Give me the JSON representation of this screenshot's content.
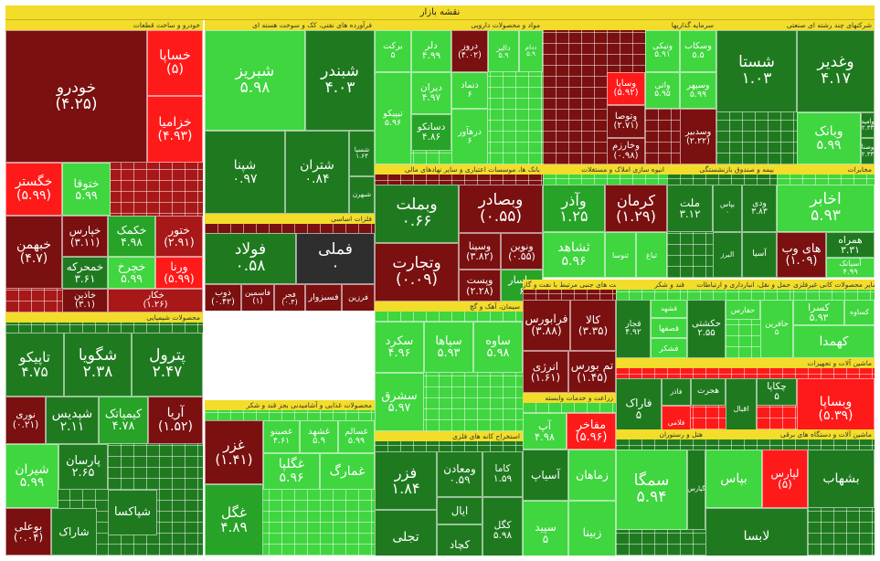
{
  "title": "نقشه بازار",
  "colors": {
    "dg": "#1f7a1f",
    "mg": "#27a327",
    "lg": "#3fd63f",
    "bg": "#55e655",
    "dr": "#7a1010",
    "rd": "#a81818",
    "br": "#ff1a1a",
    "gy": "#2e2e2e"
  },
  "sectors": [
    {
      "label": "خودرو و ساخت قطعات",
      "tiles": [
        {
          "name": "خودرو",
          "pct": "(۴.۲۵)",
          "c": "dr",
          "big": true
        },
        {
          "name": "خساپا",
          "pct": "(۵)",
          "c": "br",
          "big": true
        },
        {
          "name": "خزامیا",
          "pct": "(۴.۹۳)",
          "c": "br"
        },
        {
          "name": "خگستر",
          "pct": "(۵.۹۹)",
          "c": "br"
        },
        {
          "name": "ختوقا",
          "pct": "۵.۹۹",
          "c": "lg"
        },
        {
          "name": "خبهمن",
          "pct": "(۴.۷)",
          "c": "dr"
        },
        {
          "name": "خپارس",
          "pct": "(۳.۱۱)",
          "c": "dr"
        },
        {
          "name": "خمحرکه",
          "pct": "۳.۶۱",
          "c": "dg"
        },
        {
          "name": "خاذین",
          "pct": "(۳.۱)",
          "c": "dr"
        },
        {
          "name": "خکمک",
          "pct": "۴.۹۸",
          "c": "mg"
        },
        {
          "name": "ختور",
          "pct": "(۲.۹۱)",
          "c": "rd"
        },
        {
          "name": "خچرخ",
          "pct": "۵.۹۹",
          "c": "lg"
        },
        {
          "name": "ورنا",
          "pct": "(۵.۹۹)",
          "c": "br"
        },
        {
          "name": "خکار",
          "pct": "(۱.۲۶)",
          "c": "rd"
        }
      ]
    },
    {
      "label": "فرآورده های نفتی، کک و سوخت هسته ای",
      "tiles": [
        {
          "name": "شبندر",
          "pct": "۴.۰۳",
          "c": "dg",
          "big": true
        },
        {
          "name": "شبریز",
          "pct": "۵.۹۸",
          "c": "lg",
          "big": true
        },
        {
          "name": "شتران",
          "pct": "۰.۸۴",
          "c": "dg"
        },
        {
          "name": "شپنا",
          "pct": "۰.۹۷",
          "c": "dg"
        },
        {
          "name": "شسپا",
          "pct": "۱.۶۳",
          "c": "dg"
        },
        {
          "name": "شبهرن",
          "pct": "",
          "c": "dg"
        }
      ]
    },
    {
      "label": "فلزات اساسی",
      "tiles": [
        {
          "name": "فولاد",
          "pct": "۰.۵۸",
          "c": "dg",
          "big": true
        },
        {
          "name": "فملی",
          "pct": "۰",
          "c": "gy",
          "big": true
        },
        {
          "name": "ذوب",
          "pct": "(۰.۴۲)",
          "c": "dr"
        },
        {
          "name": "فاسمین",
          "pct": "(۱)",
          "c": "dr"
        },
        {
          "name": "فجر",
          "pct": "(۰.۴)",
          "c": "dr"
        },
        {
          "name": "فسبزوار",
          "pct": "",
          "c": "dr"
        },
        {
          "name": "فرزین",
          "pct": "",
          "c": "dr"
        }
      ]
    },
    {
      "label": "محصولات شیمیایی",
      "tiles": [
        {
          "name": "تاپیکو",
          "pct": "۴.۷۵",
          "c": "dg",
          "big": true
        },
        {
          "name": "شگویا",
          "pct": "۲.۳۸",
          "c": "dg",
          "big": true
        },
        {
          "name": "پترول",
          "pct": "۲.۴۷",
          "c": "dg",
          "big": true
        },
        {
          "name": "نوری",
          "pct": "(۰.۲۱)",
          "c": "dr"
        },
        {
          "name": "شپدیس",
          "pct": "۲.۱۱",
          "c": "dg"
        },
        {
          "name": "کیمیاتک",
          "pct": "۴.۷۸",
          "c": "mg"
        },
        {
          "name": "آریا",
          "pct": "(۱.۵۲)",
          "c": "dr"
        },
        {
          "name": "شیران",
          "pct": "۵.۹۹",
          "c": "lg"
        },
        {
          "name": "پارسان",
          "pct": "۲.۶۵",
          "c": "dg"
        },
        {
          "name": "بوعلی",
          "pct": "(۰.۰۴)",
          "c": "dr"
        },
        {
          "name": "شاراک",
          "pct": "",
          "c": "dg"
        },
        {
          "name": "شپاکسا",
          "pct": "",
          "c": "dg"
        }
      ]
    },
    {
      "label": "مواد و محصولات دارویی",
      "tiles": [
        {
          "name": "برکت",
          "pct": "۵",
          "c": "lg"
        },
        {
          "name": "دلر",
          "pct": "۴.۹۹",
          "c": "lg"
        },
        {
          "name": "دروز",
          "pct": "(۴.۰۲)",
          "c": "dr"
        },
        {
          "name": "دالبر",
          "pct": "۵.۹",
          "c": "lg"
        },
        {
          "name": "ددام",
          "pct": "۵.۹",
          "c": "lg"
        },
        {
          "name": "دیران",
          "pct": "۴.۹۷",
          "c": "lg"
        },
        {
          "name": "دتماد",
          "pct": "۶",
          "c": "lg"
        },
        {
          "name": "دسانکو",
          "pct": "۴.۸۶",
          "c": "mg"
        },
        {
          "name": "تیپیکو",
          "pct": "۵.۹۶",
          "c": "lg"
        },
        {
          "name": "درهآور",
          "pct": "۶",
          "c": "lg"
        }
      ]
    },
    {
      "label": "سرمایه گذاریها",
      "tiles": [
        {
          "name": "وتیکی",
          "pct": "۵.۹۱",
          "c": "lg"
        },
        {
          "name": "وسکاب",
          "pct": "۵.۵",
          "c": "lg"
        },
        {
          "name": "واتی",
          "pct": "۵.۹۵",
          "c": "lg"
        },
        {
          "name": "وسپهر",
          "pct": "۵.۹۹",
          "c": "lg"
        },
        {
          "name": "وساپا",
          "pct": "(۵.۹۲)",
          "c": "br"
        },
        {
          "name": "وتوصا",
          "pct": "(۲.۷۱)",
          "c": "dr"
        },
        {
          "name": "وخارزم",
          "pct": "(۰.۹۸)",
          "c": "dr"
        },
        {
          "name": "وسدبیر",
          "pct": "(۲.۲۲)",
          "c": "dr"
        }
      ]
    },
    {
      "label": "شرکتهای چند رشته ای صنعتی",
      "tiles": [
        {
          "name": "شستا",
          "pct": "۱.۰۳",
          "c": "dg",
          "big": true
        },
        {
          "name": "وغدیر",
          "pct": "۴.۱۷",
          "c": "dg",
          "big": true
        },
        {
          "name": "وبانک",
          "pct": "۵.۹۹",
          "c": "lg"
        },
        {
          "name": "وامید",
          "pct": "۲.۳۳",
          "c": "dg"
        },
        {
          "name": "وصنا",
          "pct": "۲.۳۳",
          "c": "dg"
        }
      ]
    },
    {
      "label": "بانک ها، موسسات اعتباری و سایر نهادهای مالی",
      "tiles": [
        {
          "name": "وبملت",
          "pct": "۰.۶۶",
          "c": "dg",
          "big": true
        },
        {
          "name": "وبصادر",
          "pct": "(۰.۵۵)",
          "c": "dr",
          "big": true
        },
        {
          "name": "وسینا",
          "pct": "(۳.۸۲)",
          "c": "dr"
        },
        {
          "name": "ونوین",
          "pct": "(۰.۵۵)",
          "c": "dr"
        },
        {
          "name": "وتجارت",
          "pct": "(۰.۰۹)",
          "c": "dr",
          "big": true
        },
        {
          "name": "وپاسار",
          "pct": "۶",
          "c": "mg"
        },
        {
          "name": "وپست",
          "pct": "(۲.۲۸)",
          "c": "dr"
        },
        {
          "name": "وپارس",
          "pct": "",
          "c": "dr"
        }
      ]
    },
    {
      "label": "انبوه سازی املاک و مستغلات",
      "tiles": [
        {
          "name": "وآذر",
          "pct": "۱.۲۵",
          "c": "mg",
          "big": true
        },
        {
          "name": "کرمان",
          "pct": "(۱.۲۹)",
          "c": "dr",
          "big": true
        },
        {
          "name": "ثشاهد",
          "pct": "۵.۹۶",
          "c": "lg"
        },
        {
          "name": "ثنوسا",
          "pct": "",
          "c": "lg"
        },
        {
          "name": "ثباغ",
          "pct": "",
          "c": "lg"
        }
      ]
    },
    {
      "label": "بیمه و صندوق بازنشستگی",
      "tiles": [
        {
          "name": "ملت",
          "pct": "۳.۱۲",
          "c": "dg",
          "big": true
        },
        {
          "name": "بپاس",
          "pct": "۰",
          "c": "dg"
        },
        {
          "name": "ودی",
          "pct": "۳.۸۳",
          "c": "dg"
        },
        {
          "name": "آسیا",
          "pct": "",
          "c": "dg"
        },
        {
          "name": "البرز",
          "pct": "",
          "c": "dg"
        }
      ]
    },
    {
      "label": "مخابرات",
      "tiles": [
        {
          "name": "اخابر",
          "pct": "۵.۹۳",
          "c": "lg",
          "big": true
        },
        {
          "name": "های وب",
          "pct": "(۱.۰۹)",
          "c": "dr"
        },
        {
          "name": "همراه",
          "pct": "۳.۳۱",
          "c": "dg"
        },
        {
          "name": "آسیاتک",
          "pct": "۴.۹۹",
          "c": "lg"
        }
      ]
    },
    {
      "label": "سیمان، آهک و گچ",
      "tiles": [
        {
          "name": "سکرد",
          "pct": "۴.۹۶",
          "c": "lg"
        },
        {
          "name": "سپاها",
          "pct": "۵.۹۳",
          "c": "lg"
        },
        {
          "name": "ساوه",
          "pct": "۵.۹۸",
          "c": "lg"
        },
        {
          "name": "سشرق",
          "pct": "۵.۹۷",
          "c": "lg"
        },
        {
          "name": "سیتا",
          "pct": "۴.۹۷",
          "c": "lg"
        }
      ]
    },
    {
      "label": "فعالیت های جنبی مرتبط با نفت و گاز",
      "tiles": [
        {
          "name": "فرابورس",
          "pct": "(۳.۸۸)",
          "c": "dr",
          "big": true
        },
        {
          "name": "کالا",
          "pct": "(۳.۳۵)",
          "c": "dr",
          "big": true
        },
        {
          "name": "انرژی",
          "pct": "(۱.۶۱)",
          "c": "dr"
        },
        {
          "name": "تم بورس",
          "pct": "(۱.۴۵)",
          "c": "dr"
        }
      ]
    },
    {
      "label": "قند و شکر",
      "tiles": [
        {
          "name": "قجار",
          "pct": "۴.۹۲",
          "c": "dg",
          "big": true
        },
        {
          "name": "قشهد",
          "pct": "",
          "c": "lg"
        },
        {
          "name": "قصفها",
          "pct": "",
          "c": "lg"
        },
        {
          "name": "قشکر",
          "pct": "",
          "c": "lg"
        }
      ]
    },
    {
      "label": "حمل و نقل، انبارداری و ارتباطات",
      "tiles": [
        {
          "name": "حکشتی",
          "pct": "۲.۵۵",
          "c": "dg"
        },
        {
          "name": "حفارس",
          "pct": "",
          "c": "lg"
        },
        {
          "name": "حافرین",
          "pct": "۵",
          "c": "lg"
        }
      ]
    },
    {
      "label": "سایر محصولات کانی غیرفلزی",
      "tiles": [
        {
          "name": "کسرا",
          "pct": "۵.۹۳",
          "c": "lg"
        },
        {
          "name": "کساوه",
          "pct": "",
          "c": "lg"
        },
        {
          "name": "کهمدا",
          "pct": "",
          "c": "lg"
        }
      ]
    },
    {
      "label": "محصولات غذایی و آشامیدنی بجز قند و شکر",
      "tiles": [
        {
          "name": "غزر",
          "pct": "(۱.۴۱)",
          "c": "dr",
          "big": true
        },
        {
          "name": "غصینو",
          "pct": "۴.۶۱",
          "c": "lg"
        },
        {
          "name": "غشهد",
          "pct": "۵.۹",
          "c": "lg"
        },
        {
          "name": "غسالم",
          "pct": "۵.۹۹",
          "c": "lg"
        },
        {
          "name": "غگل",
          "pct": "۴.۸۹",
          "c": "mg",
          "big": true
        },
        {
          "name": "غگلپا",
          "pct": "۵.۹۶",
          "c": "lg"
        },
        {
          "name": "غدام",
          "pct": "۳.۸۴",
          "c": "dg"
        },
        {
          "name": "غمارگ",
          "pct": "",
          "c": "lg"
        }
      ]
    },
    {
      "label": "استخراج کانه های فلزی",
      "tiles": [
        {
          "name": "فزر",
          "pct": "۱.۸۴",
          "c": "dg",
          "big": true
        },
        {
          "name": "ومعادن",
          "pct": "۰.۵۹",
          "c": "dg"
        },
        {
          "name": "کاما",
          "pct": "۱.۵۹",
          "c": "dg"
        },
        {
          "name": "ایال",
          "pct": "",
          "c": "dg"
        },
        {
          "name": "کگل",
          "pct": "۵.۹۸",
          "c": "dg"
        },
        {
          "name": "کچاد",
          "pct": "",
          "c": "dg"
        },
        {
          "name": "تجلی",
          "pct": "",
          "c": "dg"
        }
      ]
    },
    {
      "label": "زراعت و خدمات وابسته",
      "tiles": [
        {
          "name": "آپ",
          "pct": "۴.۹۸",
          "c": "lg"
        },
        {
          "name": "مفاخر",
          "pct": "(۵.۹۶)",
          "c": "br"
        },
        {
          "name": "آسیاپ",
          "pct": "",
          "c": "dg"
        },
        {
          "name": "سپید",
          "pct": "۵",
          "c": "lg"
        },
        {
          "name": "زبینا",
          "pct": "",
          "c": "lg"
        },
        {
          "name": "زماهان",
          "pct": "",
          "c": "lg"
        }
      ]
    },
    {
      "label": "ماشین آلات و تجهیزات",
      "tiles": [
        {
          "name": "فاراک",
          "pct": "۵",
          "c": "dg"
        },
        {
          "name": "فاذر",
          "pct": "",
          "c": "dg"
        },
        {
          "name": "هجرت",
          "pct": "",
          "c": "dg"
        },
        {
          "name": "اقبال",
          "pct": "",
          "c": "dg"
        },
        {
          "name": "چکاپا",
          "pct": "۵",
          "c": "dg"
        },
        {
          "name": "فلامی",
          "pct": "",
          "c": "br"
        },
        {
          "name": "وبساپا",
          "pct": "(۵.۳۹)",
          "c": "br"
        }
      ]
    },
    {
      "label": "هتل و رستوران",
      "tiles": [
        {
          "name": "سمگا",
          "pct": "۵.۹۴",
          "c": "lg",
          "big": true
        },
        {
          "name": "گپارس",
          "pct": "",
          "c": "dg"
        }
      ]
    },
    {
      "label": "ماشین آلات و دستگاه های برقی",
      "tiles": [
        {
          "name": "بپاس",
          "pct": "",
          "c": "lg"
        },
        {
          "name": "لپارس",
          "pct": "(۵)",
          "c": "br"
        },
        {
          "name": "بشهاب",
          "pct": "",
          "c": "dg"
        },
        {
          "name": "لابسا",
          "pct": "",
          "c": "dg"
        }
      ]
    }
  ]
}
